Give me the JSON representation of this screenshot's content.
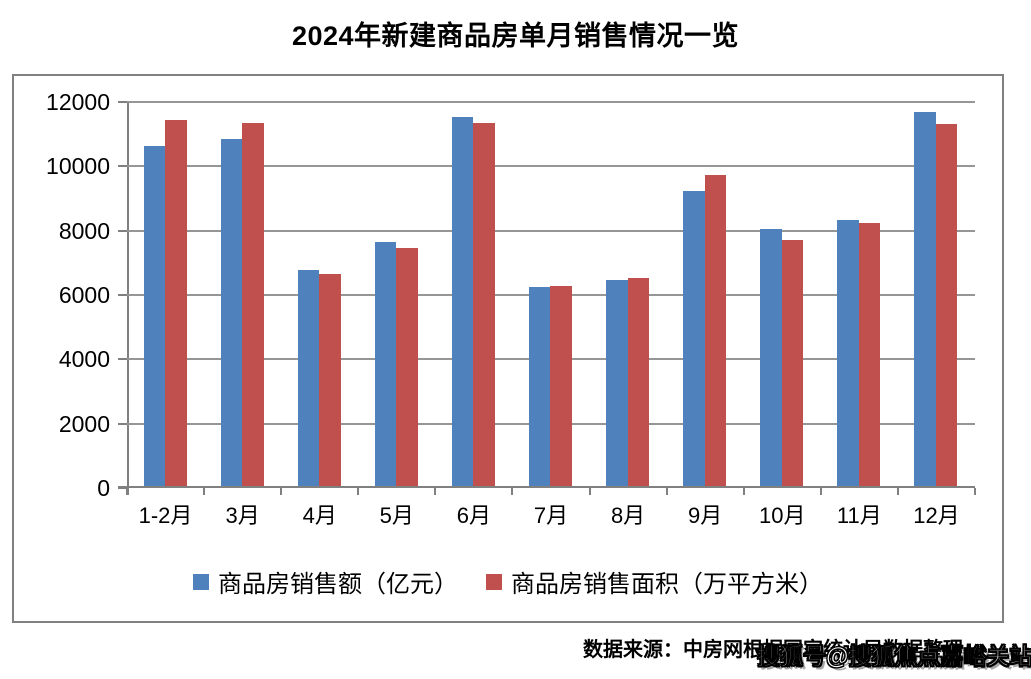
{
  "title": "2024年新建商品房单月销售情况一览",
  "source_text": "数据来源：中房网根据国家统计局数据整理",
  "watermark": "搜狐号@搜狐焦点嘉峪关站",
  "colors": {
    "sales_amount_bar": "#4F81BD",
    "sales_area_bar": "#C0504D",
    "gridline": "#969696",
    "axis": "#808080",
    "frame_border": "#808080",
    "text": "#000000",
    "background": "#FFFFFF"
  },
  "chart_data": {
    "type": "bar",
    "title": "2024年新建商品房单月销售情况一览",
    "categories": [
      "1-2月",
      "3月",
      "4月",
      "5月",
      "6月",
      "7月",
      "8月",
      "9月",
      "10月",
      "11月",
      "12月"
    ],
    "series": [
      {
        "name": "商品房销售额（亿元）",
        "color": "#4F81BD",
        "values": [
          10566,
          10789,
          6712,
          7598,
          11468,
          6197,
          6393,
          9157,
          7975,
          8270,
          11625
        ]
      },
      {
        "name": "商品房销售面积（万平方米）",
        "color": "#C0504D",
        "values": [
          11369,
          11299,
          6584,
          7390,
          11274,
          6233,
          6453,
          9682,
          7646,
          8188,
          11267
        ]
      }
    ],
    "xlabel": "",
    "ylabel": "",
    "ylim": [
      0,
      12000
    ],
    "yticks": [
      0,
      2000,
      4000,
      6000,
      8000,
      10000,
      12000
    ],
    "grid": true,
    "legend_position": "bottom"
  }
}
